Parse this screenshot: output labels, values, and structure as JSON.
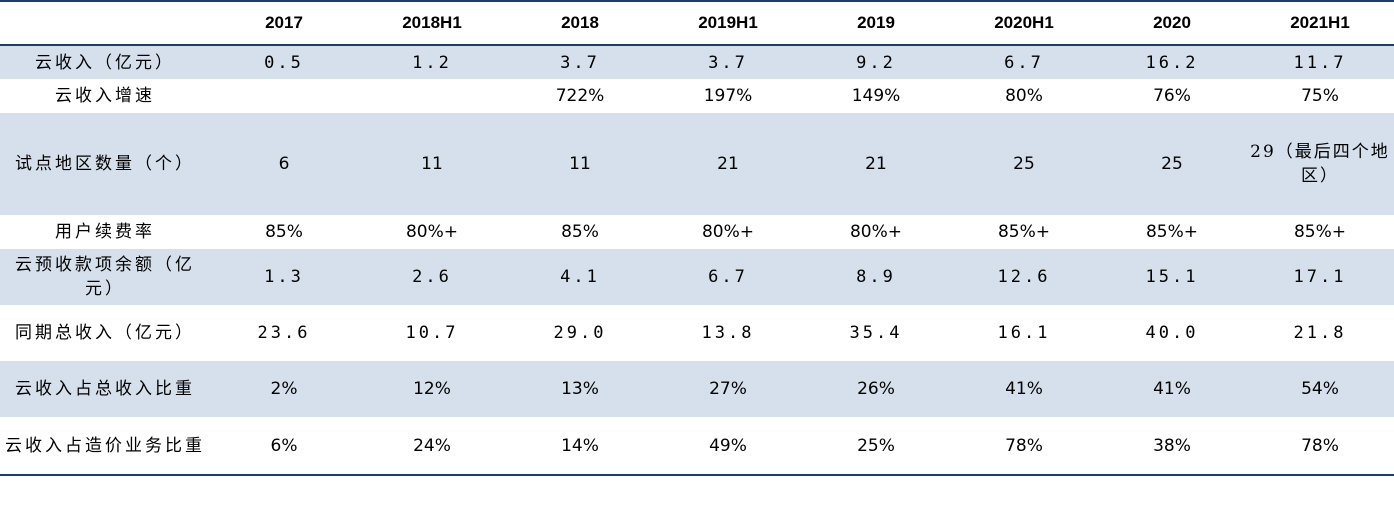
{
  "table": {
    "headers": [
      "",
      "2017",
      "2018H1",
      "2018",
      "2019H1",
      "2019",
      "2020H1",
      "2020",
      "2021H1"
    ],
    "rows": [
      {
        "label": "云收入（亿元）",
        "values": [
          "0.5",
          "1.2",
          "3.7",
          "3.7",
          "9.2",
          "6.7",
          "16.2",
          "11.7"
        ]
      },
      {
        "label": "云收入增速",
        "values": [
          "",
          "",
          "722%",
          "197%",
          "149%",
          "80%",
          "76%",
          "75%"
        ]
      },
      {
        "label": "试点地区数量（个）",
        "values": [
          "6",
          "11",
          "11",
          "21",
          "21",
          "25",
          "25",
          "29（最后四个地区）"
        ]
      },
      {
        "label": "用户续费率",
        "values": [
          "85%",
          "80%+",
          "85%",
          "80%+",
          "80%+",
          "85%+",
          "85%+",
          "85%+"
        ]
      },
      {
        "label": "云预收款项余额（亿元）",
        "values": [
          "1.3",
          "2.6",
          "4.1",
          "6.7",
          "8.9",
          "12.6",
          "15.1",
          "17.1"
        ]
      },
      {
        "label": "同期总收入（亿元）",
        "values": [
          "23.6",
          "10.7",
          "29.0",
          "13.8",
          "35.4",
          "16.1",
          "40.0",
          "21.8"
        ]
      },
      {
        "label": "云收入占总收入比重",
        "values": [
          "2%",
          "12%",
          "13%",
          "27%",
          "26%",
          "41%",
          "41%",
          "54%"
        ]
      },
      {
        "label": "云收入占造价业务比重",
        "values": [
          "6%",
          "24%",
          "14%",
          "49%",
          "25%",
          "78%",
          "38%",
          "78%"
        ]
      }
    ]
  },
  "colors": {
    "row_alt_bg": "#d6e0ec",
    "rule": "#1f3e66"
  }
}
